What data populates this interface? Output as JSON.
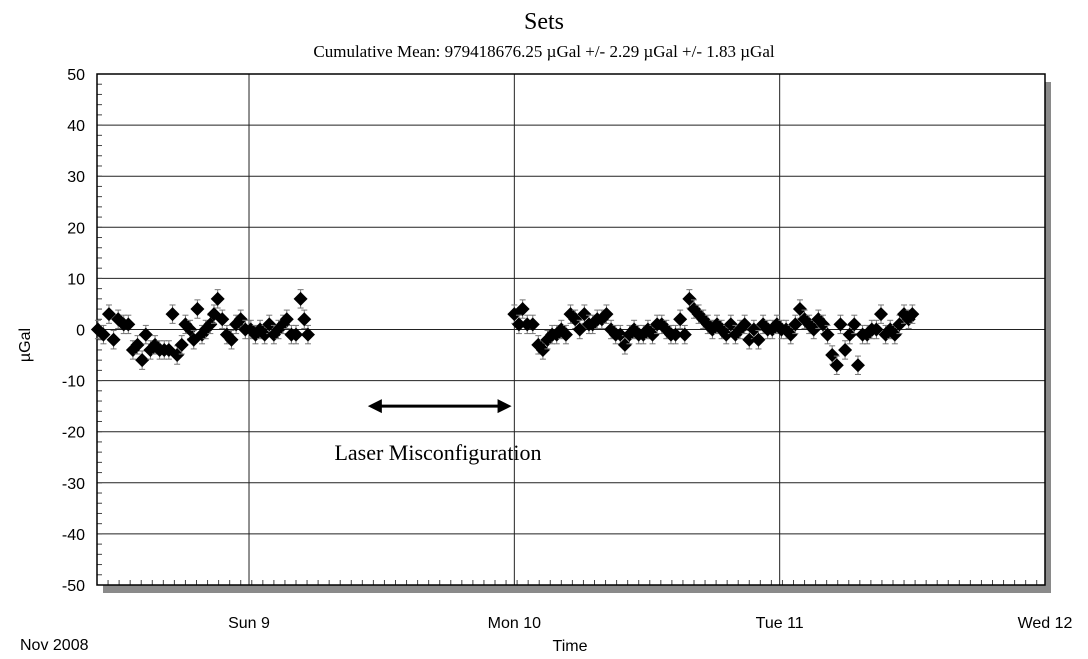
{
  "chart_data": {
    "type": "scatter",
    "title": "Sets",
    "subtitle": "Cumulative Mean:  979418676.25 µGal    +/- 2.29 µGal    +/-  1.83 µGal",
    "ylabel": "µGal",
    "xlabel": "Time",
    "date_label": "Nov 2008",
    "ylim": [
      -50,
      50
    ],
    "yticks": [
      50,
      40,
      30,
      20,
      10,
      0,
      -10,
      -20,
      -30,
      -40,
      -50
    ],
    "xlim": [
      "2008-11-08 10:15",
      "2008-11-12 00:00"
    ],
    "xticks": [
      {
        "label": "Sun 9",
        "at": "2008-11-09 00:00"
      },
      {
        "label": "Mon 10",
        "at": "2008-11-10 00:00"
      },
      {
        "label": "Tue 11",
        "at": "2008-11-11 00:00"
      },
      {
        "label": "Wed 12",
        "at": "2008-11-12 00:00"
      }
    ],
    "grid": true,
    "error_bar": 1.8,
    "annotation": {
      "text": "Laser Misconfiguration",
      "from": "2008-11-09 10:45",
      "to": "2008-11-09 23:45",
      "y": -15
    },
    "series": [
      {
        "marker": "diamond",
        "color": "#000000",
        "points": [
          [
            "2008-11-08 10:20",
            0
          ],
          [
            "2008-11-08 10:50",
            -1
          ],
          [
            "2008-11-08 11:20",
            3
          ],
          [
            "2008-11-08 11:45",
            -2
          ],
          [
            "2008-11-08 12:10",
            2
          ],
          [
            "2008-11-08 12:40",
            1
          ],
          [
            "2008-11-08 13:05",
            1
          ],
          [
            "2008-11-08 13:30",
            -4
          ],
          [
            "2008-11-08 13:55",
            -3
          ],
          [
            "2008-11-08 14:20",
            -6
          ],
          [
            "2008-11-08 14:40",
            -1
          ],
          [
            "2008-11-08 15:05",
            -4
          ],
          [
            "2008-11-08 15:30",
            -3
          ],
          [
            "2008-11-08 15:55",
            -4
          ],
          [
            "2008-11-08 16:20",
            -4
          ],
          [
            "2008-11-08 16:45",
            -4
          ],
          [
            "2008-11-08 17:05",
            3
          ],
          [
            "2008-11-08 17:30",
            -5
          ],
          [
            "2008-11-08 17:55",
            -3
          ],
          [
            "2008-11-08 18:15",
            1
          ],
          [
            "2008-11-08 18:40",
            0
          ],
          [
            "2008-11-08 19:00",
            -2
          ],
          [
            "2008-11-08 19:20",
            4
          ],
          [
            "2008-11-08 19:45",
            -1
          ],
          [
            "2008-11-08 20:05",
            0
          ],
          [
            "2008-11-08 20:30",
            1
          ],
          [
            "2008-11-08 20:50",
            3
          ],
          [
            "2008-11-08 21:10",
            6
          ],
          [
            "2008-11-08 21:35",
            2
          ],
          [
            "2008-11-08 22:00",
            -1
          ],
          [
            "2008-11-08 22:25",
            -2
          ],
          [
            "2008-11-08 22:50",
            1
          ],
          [
            "2008-11-08 23:15",
            2
          ],
          [
            "2008-11-08 23:40",
            0
          ],
          [
            "2008-11-09 00:10",
            0
          ],
          [
            "2008-11-09 00:35",
            -1
          ],
          [
            "2008-11-09 01:00",
            0
          ],
          [
            "2008-11-09 01:25",
            -1
          ],
          [
            "2008-11-09 01:50",
            1
          ],
          [
            "2008-11-09 02:15",
            -1
          ],
          [
            "2008-11-09 02:40",
            0
          ],
          [
            "2008-11-09 03:05",
            1
          ],
          [
            "2008-11-09 03:25",
            2
          ],
          [
            "2008-11-09 03:50",
            -1
          ],
          [
            "2008-11-09 04:15",
            -1
          ],
          [
            "2008-11-09 04:40",
            6
          ],
          [
            "2008-11-09 05:00",
            2
          ],
          [
            "2008-11-09 05:20",
            -1
          ],
          [
            "2008-11-10 00:00",
            3
          ],
          [
            "2008-11-10 00:25",
            1
          ],
          [
            "2008-11-10 00:45",
            4
          ],
          [
            "2008-11-10 01:10",
            1
          ],
          [
            "2008-11-10 01:40",
            1
          ],
          [
            "2008-11-10 02:10",
            -3
          ],
          [
            "2008-11-10 02:35",
            -4
          ],
          [
            "2008-11-10 03:00",
            -2
          ],
          [
            "2008-11-10 03:25",
            -1
          ],
          [
            "2008-11-10 03:50",
            -1
          ],
          [
            "2008-11-10 04:15",
            0
          ],
          [
            "2008-11-10 04:40",
            -1
          ],
          [
            "2008-11-10 05:05",
            3
          ],
          [
            "2008-11-10 05:30",
            2
          ],
          [
            "2008-11-10 05:55",
            0
          ],
          [
            "2008-11-10 06:20",
            3
          ],
          [
            "2008-11-10 06:45",
            1
          ],
          [
            "2008-11-10 07:05",
            1
          ],
          [
            "2008-11-10 07:30",
            2
          ],
          [
            "2008-11-10 07:55",
            2
          ],
          [
            "2008-11-10 08:20",
            3
          ],
          [
            "2008-11-10 08:45",
            0
          ],
          [
            "2008-11-10 09:10",
            -1
          ],
          [
            "2008-11-10 09:35",
            -1
          ],
          [
            "2008-11-10 10:00",
            -3
          ],
          [
            "2008-11-10 10:25",
            -1
          ],
          [
            "2008-11-10 10:50",
            0
          ],
          [
            "2008-11-10 11:15",
            -1
          ],
          [
            "2008-11-10 11:40",
            -1
          ],
          [
            "2008-11-10 12:05",
            0
          ],
          [
            "2008-11-10 12:30",
            -1
          ],
          [
            "2008-11-10 12:55",
            1
          ],
          [
            "2008-11-10 13:20",
            1
          ],
          [
            "2008-11-10 13:45",
            0
          ],
          [
            "2008-11-10 14:10",
            -1
          ],
          [
            "2008-11-10 14:35",
            -1
          ],
          [
            "2008-11-10 15:00",
            2
          ],
          [
            "2008-11-10 15:25",
            -1
          ],
          [
            "2008-11-10 15:50",
            6
          ],
          [
            "2008-11-10 16:15",
            4
          ],
          [
            "2008-11-10 16:40",
            3
          ],
          [
            "2008-11-10 17:05",
            2
          ],
          [
            "2008-11-10 17:30",
            1
          ],
          [
            "2008-11-10 17:55",
            0
          ],
          [
            "2008-11-10 18:20",
            1
          ],
          [
            "2008-11-10 18:45",
            0
          ],
          [
            "2008-11-10 19:10",
            -1
          ],
          [
            "2008-11-10 19:35",
            1
          ],
          [
            "2008-11-10 20:00",
            -1
          ],
          [
            "2008-11-10 20:25",
            0
          ],
          [
            "2008-11-10 20:50",
            1
          ],
          [
            "2008-11-10 21:15",
            -2
          ],
          [
            "2008-11-10 21:40",
            0
          ],
          [
            "2008-11-10 22:05",
            -2
          ],
          [
            "2008-11-10 22:30",
            1
          ],
          [
            "2008-11-10 22:55",
            0
          ],
          [
            "2008-11-10 23:20",
            0
          ],
          [
            "2008-11-10 23:45",
            1
          ],
          [
            "2008-11-11 00:10",
            0
          ],
          [
            "2008-11-11 00:35",
            0
          ],
          [
            "2008-11-11 01:00",
            -1
          ],
          [
            "2008-11-11 01:25",
            1
          ],
          [
            "2008-11-11 01:50",
            4
          ],
          [
            "2008-11-11 02:15",
            2
          ],
          [
            "2008-11-11 02:40",
            1
          ],
          [
            "2008-11-11 03:05",
            0
          ],
          [
            "2008-11-11 03:30",
            2
          ],
          [
            "2008-11-11 03:55",
            1
          ],
          [
            "2008-11-11 04:20",
            -1
          ],
          [
            "2008-11-11 04:45",
            -5
          ],
          [
            "2008-11-11 05:10",
            -7
          ],
          [
            "2008-11-11 05:30",
            1
          ],
          [
            "2008-11-11 05:55",
            -4
          ],
          [
            "2008-11-11 06:20",
            -1
          ],
          [
            "2008-11-11 06:45",
            1
          ],
          [
            "2008-11-11 07:05",
            -7
          ],
          [
            "2008-11-11 07:30",
            -1
          ],
          [
            "2008-11-11 07:55",
            -1
          ],
          [
            "2008-11-11 08:20",
            0
          ],
          [
            "2008-11-11 08:45",
            0
          ],
          [
            "2008-11-11 09:10",
            3
          ],
          [
            "2008-11-11 09:35",
            -1
          ],
          [
            "2008-11-11 10:00",
            0
          ],
          [
            "2008-11-11 10:25",
            -1
          ],
          [
            "2008-11-11 10:50",
            1
          ],
          [
            "2008-11-11 11:15",
            3
          ],
          [
            "2008-11-11 11:40",
            2
          ],
          [
            "2008-11-11 12:00",
            3
          ]
        ]
      }
    ]
  }
}
